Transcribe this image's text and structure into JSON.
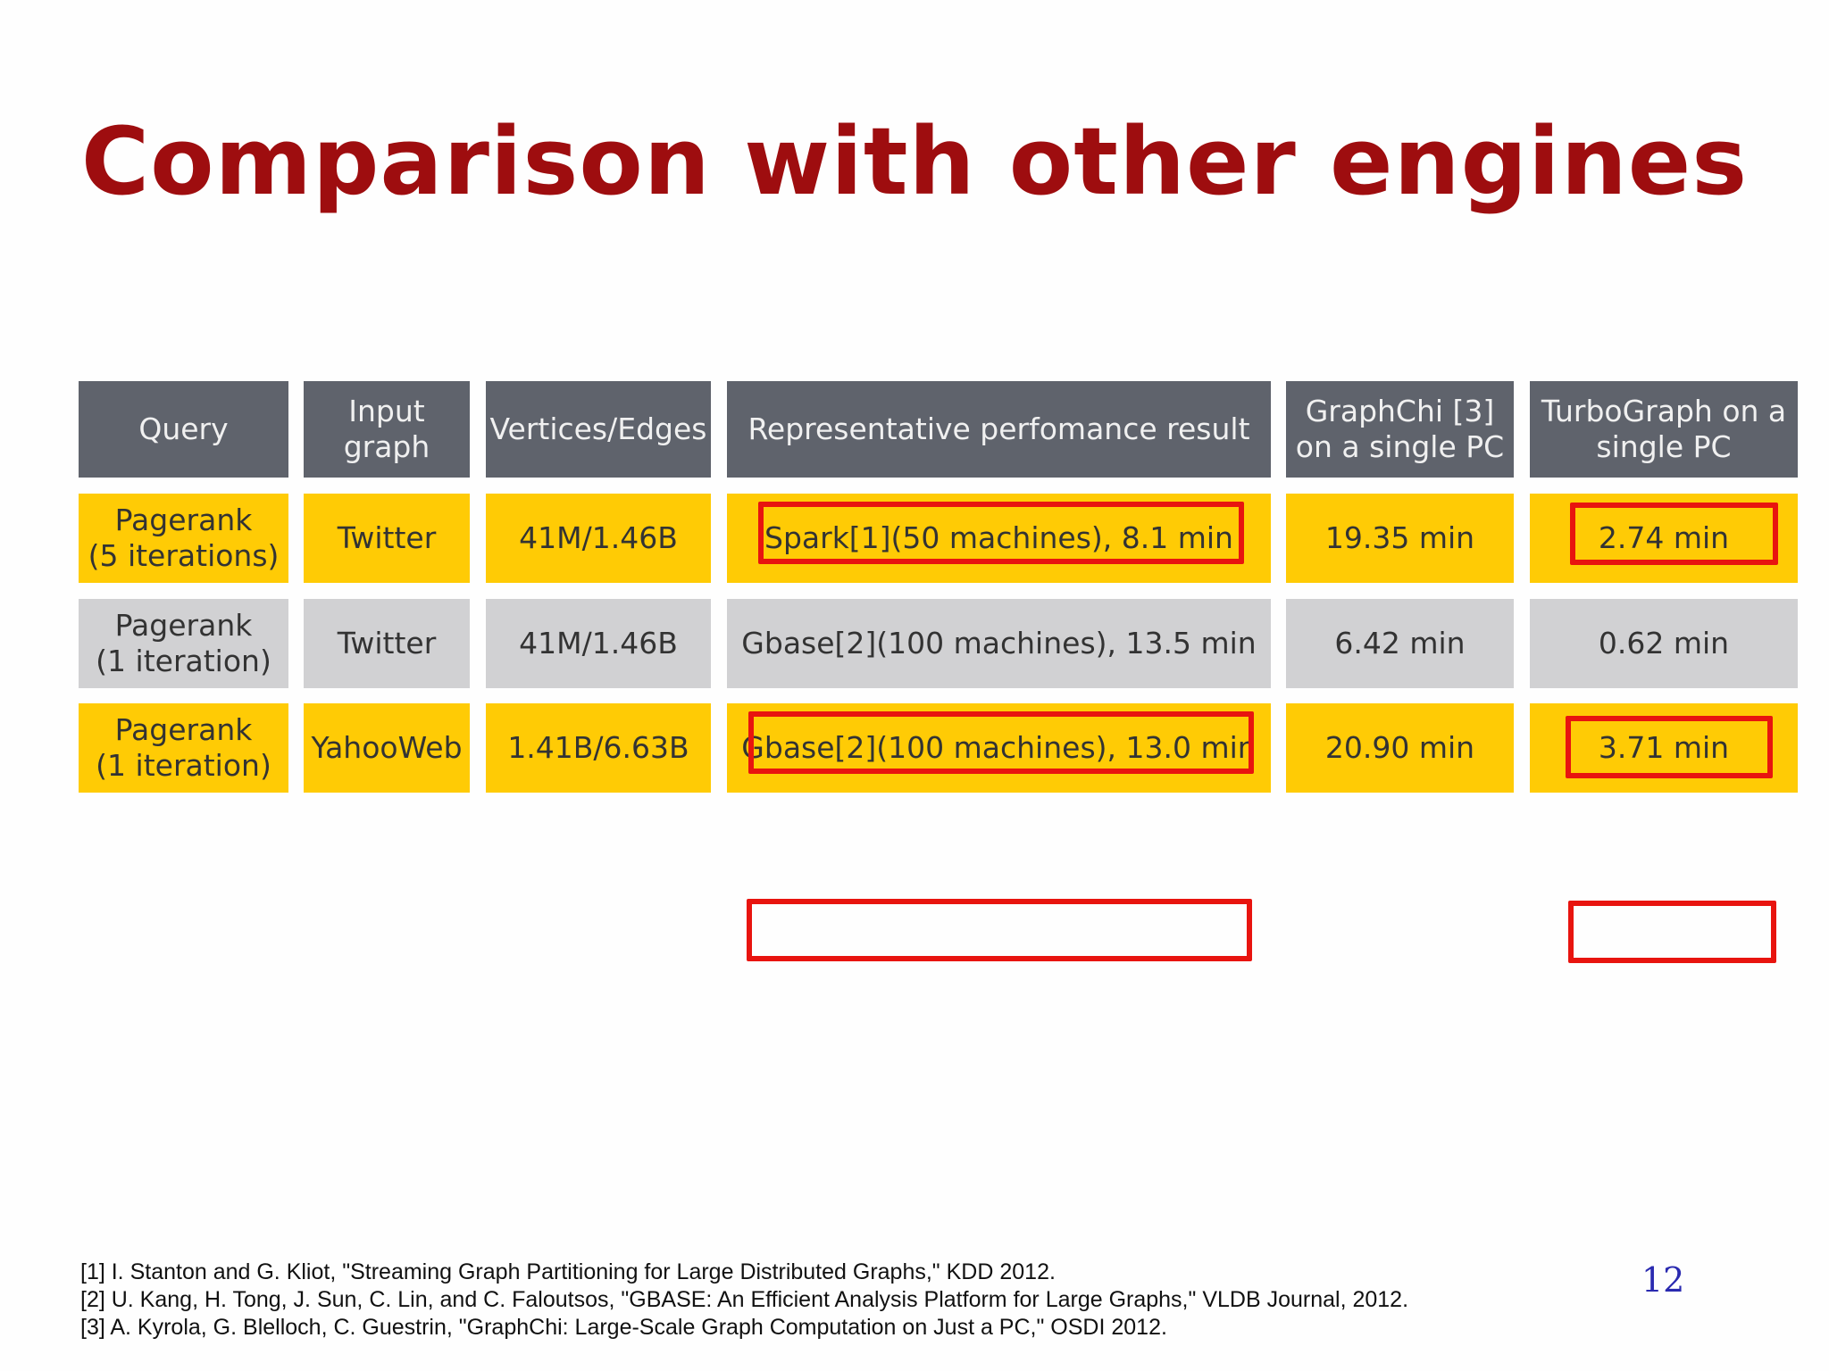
{
  "slide": {
    "title": "Comparison with other engines",
    "page_number": "12"
  },
  "table": {
    "headers": [
      "Query",
      "Input graph",
      "Vertices/Edges",
      "Representative perfomance result",
      "GraphChi [3]\non a single PC",
      "TurboGraph on a\nsingle PC"
    ],
    "rows": [
      {
        "query": "Pagerank\n(5 iterations)",
        "graph": "Twitter",
        "size": "41M/1.46B",
        "representative": "Spark[1](50 machines), 8.1 min",
        "graphchi": "19.35 min",
        "turbograph": "2.74 min",
        "highlighted": true
      },
      {
        "query": "Pagerank\n(1 iteration)",
        "graph": "Twitter",
        "size": "41M/1.46B",
        "representative": "Gbase[2](100 machines), 13.5 min",
        "graphchi": "6.42 min",
        "turbograph": "0.62 min",
        "highlighted": false
      },
      {
        "query": "Pagerank\n(1 iteration)",
        "graph": "YahooWeb",
        "size": "1.41B/6.63B",
        "representative": "Gbase[2](100 machines), 13.0 min",
        "graphchi": "20.90 min",
        "turbograph": "3.71 min",
        "highlighted": true
      }
    ]
  },
  "references": [
    "[1] I. Stanton and G. Kliot, \"Streaming Graph Partitioning for Large Distributed Graphs,\" KDD 2012.",
    "[2] U. Kang, H. Tong, J. Sun, C. Lin, and C. Faloutsos, \"GBASE: An Efficient Analysis Platform for Large Graphs,\" VLDB Journal, 2012.",
    "[3] A. Kyrola, G. Blelloch, C. Guestrin, \"GraphChi: Large-Scale Graph Computation on Just a PC,\" OSDI  2012."
  ],
  "colors": {
    "title": "#9e0d0f",
    "header_bg": "#5f636c",
    "highlight_row": "#ffcb05",
    "plain_row": "#d1d1d3",
    "emphasis_box": "#e8140f",
    "page_number": "#2a2ab0"
  }
}
